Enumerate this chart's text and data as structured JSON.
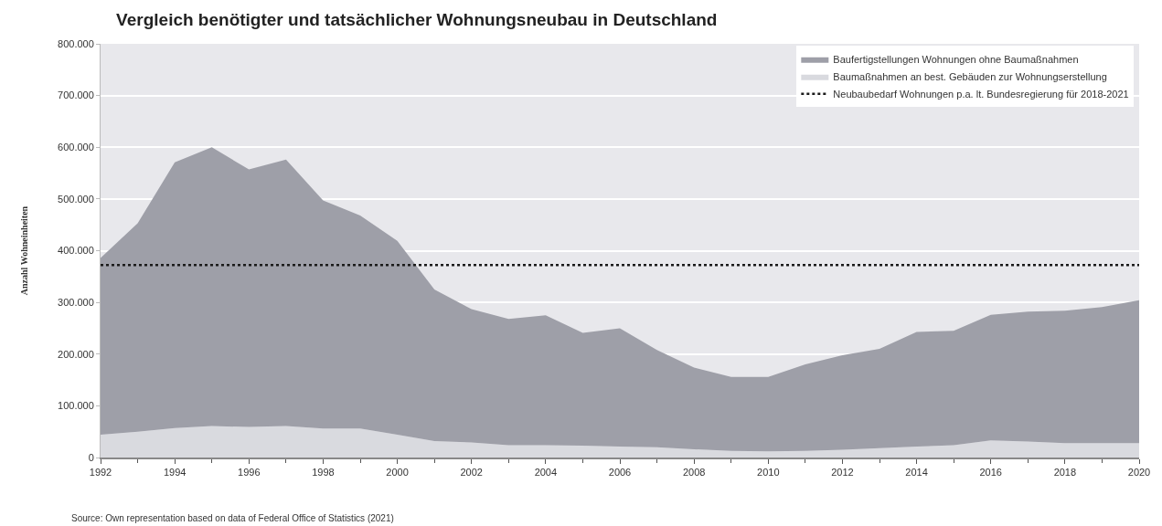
{
  "chart_data": {
    "type": "area",
    "stacked": true,
    "title": "Vergleich benötigter und tatsächlicher Wohnungsneubau in Deutschland",
    "ylabel": "Anzahl Wohneinheiten",
    "x": [
      1992,
      1993,
      1994,
      1995,
      1996,
      1997,
      1998,
      1999,
      2000,
      2001,
      2002,
      2003,
      2004,
      2005,
      2006,
      2007,
      2008,
      2009,
      2010,
      2011,
      2012,
      2013,
      2014,
      2015,
      2016,
      2017,
      2018,
      2019,
      2020
    ],
    "series": [
      {
        "name": "Baumaßnahmen an best. Gebäuden zur Wohnungserstellung",
        "color": "#d9dadf",
        "values": [
          44000,
          50000,
          57000,
          61000,
          59000,
          61000,
          56000,
          56000,
          44000,
          32000,
          29000,
          24000,
          24000,
          23000,
          21000,
          20000,
          16000,
          13000,
          12000,
          13000,
          15000,
          18000,
          21000,
          24000,
          33000,
          31000,
          28000,
          28000,
          28000
        ]
      },
      {
        "name": "Baufertigstellungen Wohnungen ohne Baumaßnahmen",
        "color": "#9e9fa8",
        "values": [
          342000,
          403000,
          514000,
          539000,
          498000,
          515000,
          441000,
          412000,
          375000,
          293000,
          258000,
          244000,
          251000,
          218000,
          229000,
          188000,
          158000,
          143000,
          144000,
          167000,
          183000,
          192000,
          222000,
          221000,
          243000,
          251000,
          256000,
          263000,
          276000
        ]
      }
    ],
    "ref_lines": [
      {
        "axis": "y",
        "value": 372000,
        "label": "Neubaubedarf Wohnungen p.a. lt. Bundesregierung für 2018-2021",
        "color": "#1a1a1a",
        "line_style": "dotted"
      }
    ],
    "xlim": [
      1992,
      2020
    ],
    "xticks": [
      1992,
      1994,
      1996,
      1998,
      2000,
      2002,
      2004,
      2006,
      2008,
      2010,
      2012,
      2014,
      2016,
      2018,
      2020
    ],
    "ylim": [
      0,
      800000
    ],
    "yticks": [
      {
        "value": 0,
        "label": "0"
      },
      {
        "value": 100000,
        "label": "100.000"
      },
      {
        "value": 200000,
        "label": "200.000"
      },
      {
        "value": 300000,
        "label": "300.000"
      },
      {
        "value": 400000,
        "label": "400.000"
      },
      {
        "value": 500000,
        "label": "500.000"
      },
      {
        "value": 600000,
        "label": "600.000"
      },
      {
        "value": 700000,
        "label": "700.000"
      },
      {
        "value": 800000,
        "label": "800.000"
      }
    ],
    "grid": "y",
    "legend": "top right",
    "annotations": [
      "Source: Own representation based on data of Federal Office of Statistics (2021)"
    ]
  }
}
